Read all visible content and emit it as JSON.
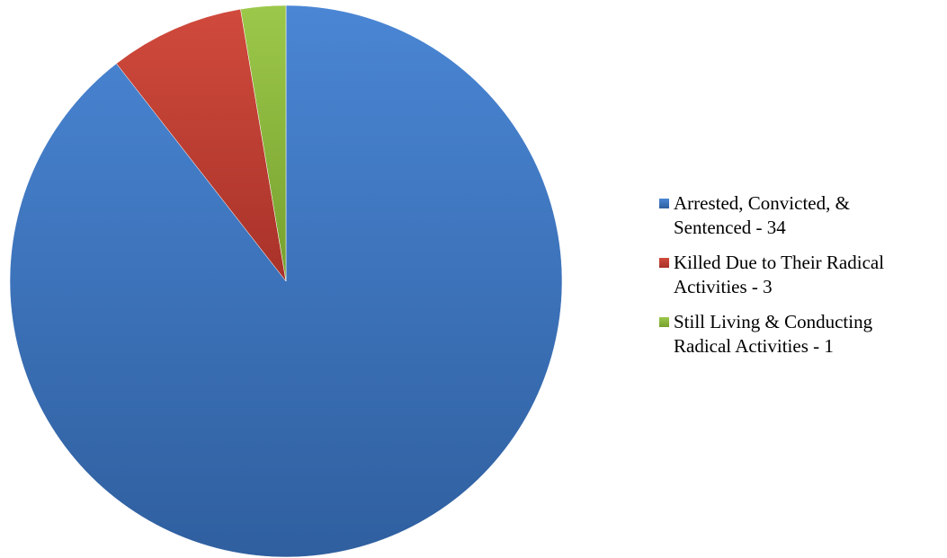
{
  "chart_data": {
    "type": "pie",
    "title": "",
    "legend_position": "right",
    "slices": [
      {
        "label": "Arrested, Convicted, &\nSentenced - 34",
        "value": 34,
        "color": "#3b73c0",
        "color_light": "#4a86d4",
        "color_dark": "#2f5f9f"
      },
      {
        "label": "Killed Due to Their Radical\nActivities - 3",
        "value": 3,
        "color": "#c0392f",
        "color_light": "#d04a3c",
        "color_dark": "#a83229"
      },
      {
        "label": "Still Living & Conducting\nRadical Activities - 1",
        "value": 1,
        "color": "#8ab83a",
        "color_light": "#9cc84a",
        "color_dark": "#76a02e"
      }
    ]
  }
}
